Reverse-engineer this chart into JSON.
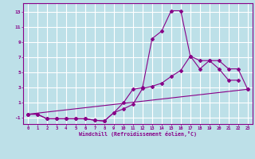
{
  "xlabel": "Windchill (Refroidissement éolien,°C)",
  "bg_color": "#bde0e8",
  "grid_color": "#ffffff",
  "line_color": "#880088",
  "x_all": [
    0,
    1,
    2,
    3,
    4,
    5,
    6,
    7,
    8,
    9,
    10,
    11,
    12,
    13,
    14,
    15,
    16,
    17,
    18,
    19,
    20,
    21,
    22,
    23
  ],
  "line1_x": [
    0,
    1,
    2,
    3,
    4,
    5,
    6,
    7,
    8,
    9,
    10,
    11,
    12,
    13,
    14,
    15,
    16,
    17,
    18,
    19,
    20,
    21,
    22
  ],
  "line1_y": [
    -0.5,
    -0.5,
    -1.1,
    -1.1,
    -1.1,
    -1.1,
    -1.1,
    -1.3,
    -1.4,
    -0.3,
    1.0,
    2.8,
    3.0,
    9.5,
    10.5,
    13.2,
    13.2,
    7.2,
    5.5,
    6.6,
    5.5,
    4.0,
    4.0
  ],
  "line2_x": [
    0,
    1,
    2,
    3,
    4,
    5,
    6,
    7,
    8,
    9,
    10,
    11,
    12,
    13,
    14,
    15,
    16,
    17,
    18,
    19,
    20,
    21,
    22,
    23
  ],
  "line2_y": [
    -0.5,
    -0.5,
    -1.1,
    -1.1,
    -1.1,
    -1.1,
    -1.1,
    -1.3,
    -1.4,
    -0.3,
    0.2,
    0.8,
    2.9,
    3.2,
    3.6,
    4.5,
    5.3,
    7.2,
    6.6,
    6.6,
    6.6,
    5.5,
    5.5,
    2.8
  ],
  "line3_x": [
    0,
    23
  ],
  "line3_y": [
    -0.5,
    2.8
  ],
  "ylim": [
    -1.8,
    14.2
  ],
  "yticks": [
    -1,
    1,
    3,
    5,
    7,
    9,
    11,
    13
  ],
  "xlim": [
    -0.5,
    23.5
  ],
  "xticks": [
    0,
    1,
    2,
    3,
    4,
    5,
    6,
    7,
    8,
    9,
    10,
    11,
    12,
    13,
    14,
    15,
    16,
    17,
    18,
    19,
    20,
    21,
    22,
    23
  ]
}
